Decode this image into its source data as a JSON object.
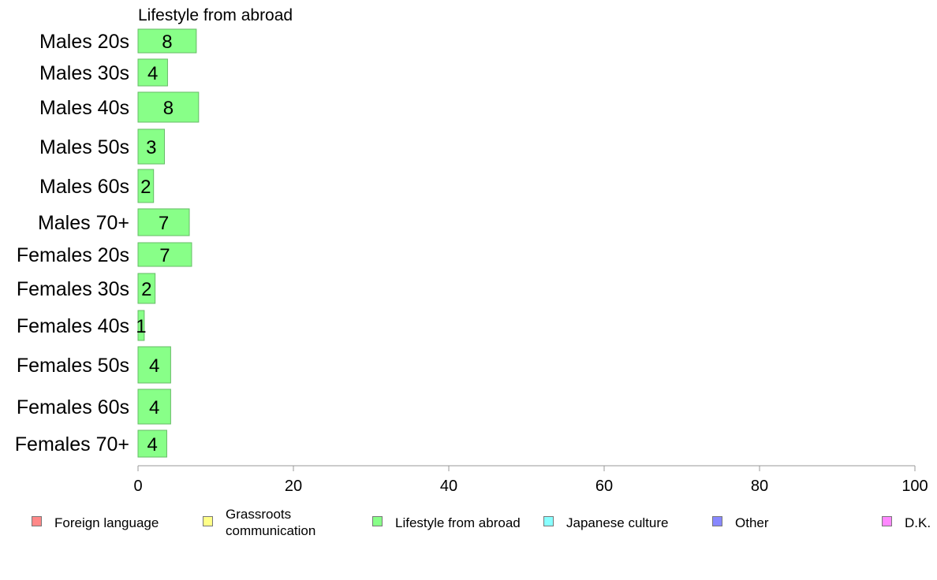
{
  "chart_data": {
    "type": "bar",
    "orientation": "horizontal",
    "title": "Lifestyle from abroad",
    "categories": [
      "Males 20s",
      "Males 30s",
      "Males 40s",
      "Males 50s",
      "Males 60s",
      "Males 70+",
      "Females 20s",
      "Females 30s",
      "Females 40s",
      "Females 50s",
      "Females 60s",
      "Females 70+"
    ],
    "values": [
      7.5,
      3.8,
      7.8,
      3.4,
      2.0,
      6.6,
      6.9,
      2.2,
      0.8,
      4.2,
      4.2,
      3.7
    ],
    "value_labels": [
      "8",
      "4",
      "8",
      "3",
      "2",
      "7",
      "7",
      "2",
      "1",
      "4",
      "4",
      "4"
    ],
    "xlim": [
      0,
      100
    ],
    "xticks": [
      "0",
      "20",
      "40",
      "60",
      "80",
      "100"
    ],
    "grid": false,
    "bar_color": "#88ff88",
    "legend": {
      "placement": "bottom",
      "items": [
        {
          "label": "Foreign language",
          "color": "#ff8888"
        },
        {
          "label": "Grassroots\ncommunication",
          "color": "#ffff88"
        },
        {
          "label": "Lifestyle from abroad",
          "color": "#88ff88"
        },
        {
          "label": "Japanese culture",
          "color": "#88ffff"
        },
        {
          "label": "Other",
          "color": "#8888ff"
        },
        {
          "label": "D.K.",
          "color": "#ff88ff"
        }
      ]
    }
  }
}
